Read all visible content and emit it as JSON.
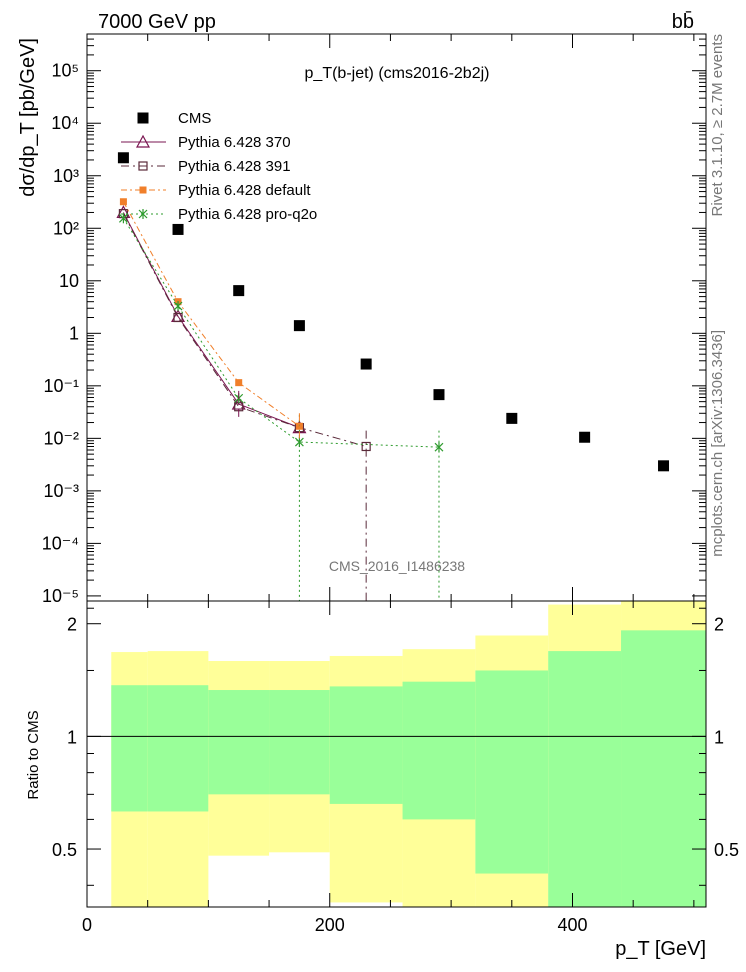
{
  "header": {
    "energy_label": "7000 GeV pp",
    "process_label": "bb̄"
  },
  "side_labels": {
    "rivet": "Rivet 3.1.10, ≥ 2.7M events",
    "mcplots": "mcplots.cern.ch [arXiv:1306.3436]"
  },
  "colors": {
    "cms": "#000000",
    "p370": "#7a1450",
    "p391": "#5a2a3a",
    "pdefault": "#f07f2a",
    "pq2o": "#2e9b2e",
    "band_inner": "#99ff99",
    "band_outer": "#ffff99"
  },
  "chart_data": [
    {
      "type": "scatter",
      "title": "p_T(b-jet) (cms2016-2b2j)",
      "watermark": "CMS_2016_I1486238",
      "ylabel": "dσ/dp_T [pb/GeV]",
      "xlabel": "p_T [GeV]",
      "yscale": "log",
      "xlim": [
        0,
        510
      ],
      "ylim": [
        8e-06,
        500000
      ],
      "y_ticks": [
        "10⁵",
        "10⁴",
        "10³",
        "10²",
        "10",
        "1",
        "10⁻¹",
        "10⁻²",
        "10⁻³",
        "10⁻⁴",
        "10⁻⁵"
      ],
      "legend_position": "top-left",
      "series": [
        {
          "name": "CMS",
          "key": "cms",
          "marker": "square",
          "x": [
            30,
            75,
            125,
            175,
            230,
            290,
            350,
            410,
            475
          ],
          "y": [
            2200,
            95,
            6.5,
            1.4,
            0.26,
            0.068,
            0.024,
            0.0105,
            0.003
          ]
        },
        {
          "name": "Pythia 6.428 370",
          "key": "p370",
          "marker": "triangle",
          "line": "solid",
          "x": [
            30,
            75,
            125,
            175
          ],
          "y": [
            200,
            2.1,
            0.045,
            0.016
          ]
        },
        {
          "name": "Pythia 6.428 391",
          "key": "p391",
          "marker": "open-square",
          "line": "dashdot",
          "x": [
            30,
            75,
            125,
            175,
            230
          ],
          "y": [
            190,
            2.0,
            0.04,
            0.016,
            0.007
          ]
        },
        {
          "name": "Pythia 6.428 default",
          "key": "pdefault",
          "marker": "filled-square",
          "line": "dashdot-dense",
          "x": [
            30,
            75,
            125,
            175
          ],
          "y": [
            320,
            4.0,
            0.115,
            0.017
          ]
        },
        {
          "name": "Pythia 6.428 pro-q2o",
          "key": "pq2o",
          "marker": "star",
          "line": "dotted",
          "x": [
            30,
            75,
            125,
            175,
            290
          ],
          "y": [
            155,
            3.3,
            0.058,
            0.0085,
            0.0068
          ]
        }
      ]
    },
    {
      "type": "area",
      "ylabel": "Ratio to CMS",
      "xlabel": "p_T [GeV]",
      "xlim": [
        0,
        510
      ],
      "ylim": [
        0.35,
        2.3
      ],
      "x_ticks": [
        "0",
        "200",
        "400"
      ],
      "y_ticks": [
        "0.5",
        "1",
        "2"
      ],
      "reference_line": 1,
      "bins": [
        {
          "x": [
            20,
            50
          ],
          "inner": [
            0.63,
            1.37
          ],
          "outer": [
            0.34,
            1.68
          ]
        },
        {
          "x": [
            50,
            100
          ],
          "inner": [
            0.63,
            1.37
          ],
          "outer": [
            0.34,
            1.69
          ]
        },
        {
          "x": [
            100,
            150
          ],
          "inner": [
            0.7,
            1.33
          ],
          "outer": [
            0.48,
            1.59
          ]
        },
        {
          "x": [
            150,
            200
          ],
          "inner": [
            0.7,
            1.33
          ],
          "outer": [
            0.49,
            1.59
          ]
        },
        {
          "x": [
            200,
            260
          ],
          "inner": [
            0.66,
            1.36
          ],
          "outer": [
            0.36,
            1.64
          ]
        },
        {
          "x": [
            260,
            320
          ],
          "inner": [
            0.6,
            1.4
          ],
          "outer": [
            0.34,
            1.71
          ]
        },
        {
          "x": [
            320,
            380
          ],
          "inner": [
            0.43,
            1.5
          ],
          "outer": [
            0.34,
            1.86
          ]
        },
        {
          "x": [
            380,
            440
          ],
          "inner": [
            0.34,
            1.69
          ],
          "outer": [
            0.34,
            2.25
          ]
        },
        {
          "x": [
            440,
            510
          ],
          "inner": [
            0.34,
            1.92
          ],
          "outer": [
            0.34,
            2.3
          ]
        }
      ]
    }
  ]
}
